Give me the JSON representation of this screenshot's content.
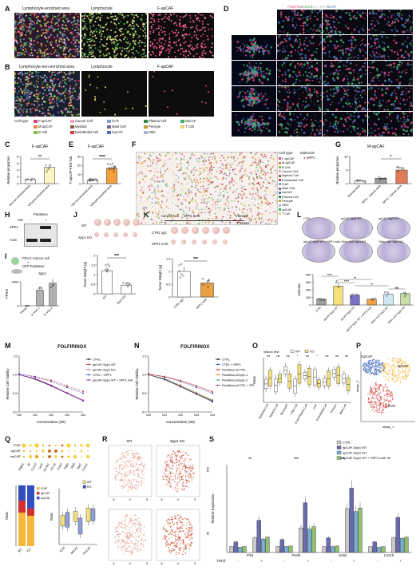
{
  "panels": [
    "A",
    "B",
    "C",
    "D",
    "E",
    "F",
    "G",
    "H",
    "I",
    "J",
    "K",
    "L",
    "M",
    "N",
    "O",
    "P",
    "Q",
    "R",
    "S"
  ],
  "panelA": {
    "titles": [
      "Lymphocyte-enriched area",
      "Lymphocyte",
      "F-apCAF"
    ]
  },
  "panelB": {
    "titles": [
      "Lymphocyte-non-enriched area",
      "Lymphocyte",
      "F-apCAF"
    ],
    "legend_title": "Cell type",
    "legend": [
      {
        "label": "F-apCAF",
        "color": "#e0457b"
      },
      {
        "label": "Cancer Cell",
        "color": "#f2a6c4"
      },
      {
        "label": "iCAF",
        "color": "#7aa0d6"
      },
      {
        "label": "Plasma Cell",
        "color": "#2f8a4a"
      },
      {
        "label": "ssiCAF",
        "color": "#3fb36a"
      },
      {
        "label": "M-apCAF",
        "color": "#e08a3a"
      },
      {
        "label": "Myeloid",
        "color": "#8a5a3a"
      },
      {
        "label": "Mast Cell",
        "color": "#6a6a9a"
      },
      {
        "label": "Pericyte",
        "color": "#c0a030"
      },
      {
        "label": "T Cell",
        "color": "#e8d070"
      },
      {
        "label": "B Cell",
        "color": "#7fbf3f"
      },
      {
        "label": "Endothelial Cell",
        "color": "#d04040"
      },
      {
        "label": "myCAF",
        "color": "#4a70c0"
      },
      {
        "label": "SMC",
        "color": "#b0b0d0"
      }
    ]
  },
  "panelC": {
    "title": "F-apCAF",
    "ylabel": "Relative proportion",
    "categories": [
      "Lymphocyte-non-enriched area",
      "Lymphocyte-enriched area"
    ],
    "sig": "**",
    "chart_data": {
      "type": "bar",
      "categories": [
        "Lymphocyte-non-enriched area",
        "Lymphocyte-enriched area"
      ],
      "values": [
        1.2,
        4.8
      ],
      "ylim": [
        0,
        8
      ],
      "yticks": [
        0,
        2,
        4,
        6,
        8
      ]
    }
  },
  "panelD": {
    "title_a": "PDGFRα",
    "title_b": "CD45",
    "title_c": "HLA-DRA",
    "title_d": "DAPI",
    "side": "CD3",
    "side2": "CD19",
    "side3": "DAPI"
  },
  "panelE": {
    "title": "F-apCAF",
    "ylabel": "F-apCAF-PDX-Nat",
    "categories": [
      "Lymphocyte-non-enriched area",
      "Lymphocyte-enriched area"
    ],
    "sig": "****",
    "chart_data": {
      "type": "bar",
      "categories": [
        "Lymphocyte-non-enriched area",
        "Lymphocyte-enriched area"
      ],
      "values": [
        4,
        17
      ],
      "ylim": [
        0,
        30
      ],
      "yticks": [
        0,
        10,
        20,
        30
      ]
    }
  },
  "panelF": {
    "legend_title": "Cell type",
    "legend": [
      "F-apCAF",
      "M-apCAF",
      "B Cell",
      "Cancer Cell",
      "Myeloid Cell",
      "Endothelial Cell",
      "iCAF",
      "Mast Cell",
      "myCAF",
      "Plasma Cell",
      "Pericyte",
      "SMC",
      "ssiCAF",
      "T Cell"
    ],
    "molecule_title": "Molecule",
    "molecule": "SPP1"
  },
  "panelG": {
    "title": "M-apCAF",
    "ylabel": "Relative proportion",
    "categories": [
      "Stromal area",
      "SPP1⁻ Cancer area",
      "SPP1⁺ Cancer area"
    ],
    "sig": "*",
    "chart_data": {
      "type": "bar",
      "categories": [
        "Stromal area",
        "SPP1⁻ Cancer area",
        "SPP1⁺ Cancer area"
      ],
      "values": [
        1,
        2,
        5
      ],
      "ylim": [
        0,
        10
      ],
      "yticks": [
        0,
        5,
        10
      ]
    }
  },
  "panelH": {
    "header": "PanMeso",
    "cm": "CM",
    "minus": "-",
    "plus": "+",
    "rows": [
      "SPP1",
      "Actin"
    ]
  },
  "panelI": {
    "labels": [
      "PDAC Cancer cell",
      "+",
      "GFP PanMeso"
    ],
    "gene": "Spp1",
    "ylabel": "FPKM",
    "categories": [
      "Parent",
      "In Vivo 1",
      "In Vivo 2"
    ],
    "chart_data": {
      "type": "bar",
      "categories": [
        "Parent",
        "In Vivo 1",
        "In Vivo 2"
      ],
      "values": [
        0,
        1300,
        1900
      ],
      "ylim": [
        0,
        2000
      ]
    }
  },
  "panelJ": {
    "rows": [
      "WT",
      "Spp1 KO"
    ],
    "ylabel": "Tumor Weight (g)",
    "categories": [
      "WT",
      "Spp1 KO"
    ],
    "sig": "***",
    "chart_data": {
      "type": "bar",
      "categories": [
        "WT",
        "Spp1 KO"
      ],
      "values": [
        1.2,
        0.45
      ],
      "ylim": [
        0,
        2.0
      ],
      "yticks": [
        0.0,
        0.5,
        1.0,
        1.5,
        2.0
      ]
    }
  },
  "panelK": {
    "timeline": [
      "Cancer Cell",
      "SPP1 mAb",
      "Harvest",
      "0",
      "7",
      "4 Weeks"
    ],
    "rows": [
      "CTRL IgG",
      "SPP1 mAb"
    ],
    "ylabel": "Tumor Weight (g)",
    "categories": [
      "CTRL IgG",
      "SPP1 mAb"
    ],
    "sig": "***",
    "chart_data": {
      "type": "bar",
      "categories": [
        "CTRL IgG",
        "SPP1 mAb"
      ],
      "values": [
        1.0,
        0.55
      ],
      "ylim": [
        0,
        1.5
      ],
      "yticks": [
        0.0,
        0.5,
        1.0,
        1.5
      ]
    }
  },
  "panelL": {
    "dish_labels": [
      "CTRL",
      "apCAF-Spp1 WT",
      "apCAF-Spp1 KO",
      "apCAF-Spp1 WT + SPP1 mAb",
      "Other CAF-Spp1 WT",
      "Other CAF-Spp1 KO"
    ],
    "ylabel": "Colonies",
    "categories": [
      "CTRL",
      "apCAF-Spp1 WT",
      "apCAF-Spp1 KO",
      "apCAF-Spp1 WT + SPP1 mAb",
      "Other CAF-Spp1 WT",
      "Other CAF-Spp1 KO"
    ],
    "sig": [
      "****",
      "**",
      "****",
      "**",
      "ns"
    ],
    "chart_data": {
      "type": "bar",
      "categories": [
        "CTRL",
        "apCAF-Spp1 WT",
        "apCAF-Spp1 KO",
        "apCAF-Spp1 WT + SPP1 mAb",
        "Other CAF-Spp1 WT",
        "Other CAF-Spp1 KO"
      ],
      "values": [
        80,
        250,
        130,
        75,
        140,
        150
      ],
      "ylim": [
        0,
        400
      ],
      "yticks": [
        0,
        100,
        200,
        300,
        400
      ]
    }
  },
  "panelM": {
    "title": "FOLFIRINOX",
    "xlabel": "Concentration (nM)",
    "ylabel": "Relative Cell Viability",
    "legend": [
      {
        "name": "CTRL",
        "color": "#000000"
      },
      {
        "name": "apCAF-Spp1 WT",
        "color": "#d03030"
      },
      {
        "name": "apCAF-Spp1 KO",
        "color": "#d060c0"
      },
      {
        "name": "CTRL + SPP1",
        "color": "#3050c0"
      },
      {
        "name": "apCAF-Spp1 WT + SPP1 mAb",
        "color": "#8030a0"
      }
    ],
    "chart_data": {
      "type": "line",
      "x": [
        1,
        10,
        100,
        1000,
        10000
      ],
      "xscale": "log",
      "ylim": [
        0,
        1.5
      ],
      "yticks": [
        0.0,
        0.5,
        1.0,
        1.5
      ],
      "series": [
        {
          "name": "CTRL",
          "values": [
            1.0,
            0.88,
            0.7,
            0.5,
            0.3
          ]
        },
        {
          "name": "apCAF-Spp1 WT",
          "values": [
            1.02,
            0.95,
            0.85,
            0.7,
            0.55
          ]
        },
        {
          "name": "apCAF-Spp1 KO",
          "values": [
            1.0,
            0.9,
            0.72,
            0.52,
            0.32
          ]
        },
        {
          "name": "CTRL + SPP1",
          "values": [
            1.02,
            0.94,
            0.82,
            0.66,
            0.5
          ]
        },
        {
          "name": "apCAF-Spp1 WT + SPP1 mAb",
          "values": [
            1.0,
            0.89,
            0.71,
            0.5,
            0.3
          ]
        }
      ]
    }
  },
  "panelN": {
    "title": "FOLFIRINOX",
    "xlabel": "Concentration (nM)",
    "ylabel": "Relative Cell Viability",
    "legend": [
      {
        "name": "CTRL",
        "color": "#000000"
      },
      {
        "name": "CTRL + SPP1",
        "color": "#3050c0"
      },
      {
        "name": "PanMeso-siCTRL",
        "color": "#d03030"
      },
      {
        "name": "PanMeso-siSpp1-1",
        "color": "#e08a3a"
      },
      {
        "name": "PanMeso-siSpp1-2",
        "color": "#3fa060"
      },
      {
        "name": "PanMeso-siCTRL + SPP1 mAb",
        "color": "#8030a0"
      }
    ],
    "chart_data": {
      "type": "line",
      "x": [
        1,
        10,
        100,
        1000,
        10000
      ],
      "xscale": "log",
      "ylim": [
        0,
        1.5
      ],
      "yticks": [
        0.0,
        0.5,
        1.0,
        1.5
      ],
      "series": [
        {
          "name": "CTRL",
          "values": [
            1.0,
            0.87,
            0.68,
            0.48,
            0.28
          ]
        },
        {
          "name": "CTRL + SPP1",
          "values": [
            1.02,
            0.94,
            0.82,
            0.66,
            0.5
          ]
        },
        {
          "name": "PanMeso-siCTRL",
          "values": [
            1.02,
            0.95,
            0.84,
            0.7,
            0.54
          ]
        },
        {
          "name": "PanMeso-siSpp1-1",
          "values": [
            1.0,
            0.9,
            0.72,
            0.52,
            0.33
          ]
        },
        {
          "name": "PanMeso-siSpp1-2",
          "values": [
            1.0,
            0.89,
            0.7,
            0.5,
            0.31
          ]
        },
        {
          "name": "PanMeso-siCTRL + SPP1 mAb",
          "values": [
            1.0,
            0.88,
            0.69,
            0.49,
            0.3
          ]
        }
      ]
    }
  },
  "panelO": {
    "test": "Wilcox test",
    "legend": [
      "WT",
      "KO"
    ],
    "ylabel": "Ratio",
    "categories": [
      "Epithelial Cell",
      "Myeloid Cell",
      "Neutrophil",
      "T/NK Cell",
      "B and Plasma Cell",
      "CAF",
      "Endothelial Cell",
      "Pericyte",
      "Mast Cell"
    ],
    "sig": [
      "ns",
      "ns",
      "ns",
      "*",
      "ns",
      "*",
      "ns",
      "ns",
      "ns"
    ]
  },
  "panelP": {
    "labels": [
      "myCAF",
      "apCAF",
      "iCAF"
    ],
    "xlabel": "umap_1",
    "ylabel": "umap_2"
  },
  "panelQ": {
    "rows": [
      "iCAF",
      "apCAF",
      "myCAF"
    ],
    "genes": [
      "Pdgfra",
      "Il6",
      "Cxcl12",
      "Cd74",
      "H2-Ab1",
      "H2-Aa",
      "Acta2",
      "Tagln",
      "Myl9",
      "Spp1",
      "Col1a1"
    ],
    "bar_categories": [
      "WT",
      "KO"
    ],
    "bar_legend": [
      "iCAF",
      "apCAF",
      "myCAF"
    ],
    "bar_ylabel": "Ratio",
    "box_categories": [
      "iCAF",
      "apCAF",
      "myCAF"
    ],
    "box_legend": [
      "WT",
      "KO"
    ],
    "box_ylabel": "Ratio"
  },
  "panelR": {
    "titles": [
      "WT",
      "Spp1 KO"
    ],
    "genes": [
      "Il16",
      "Il6"
    ]
  },
  "panelS": {
    "legend": [
      {
        "name": "CTRL",
        "color": "#c8c8c8"
      },
      {
        "name": "apCAF-Spp1 WT",
        "color": "#6a6ab0"
      },
      {
        "name": "apCAF-Spp1 KO",
        "color": "#7ab0d0"
      },
      {
        "name": "apCAF-Spp1 WT + SPP1 mAb",
        "color": "#90c070"
      }
    ],
    "ylabel": "Relative Expression",
    "genes": [
      "Fl16",
      "Postn",
      "Acta2",
      "Lrrc15"
    ],
    "tgf_label": "TGFβ",
    "tgf_values": [
      "-",
      "+",
      "-",
      "+",
      "-",
      "+",
      "-",
      "+"
    ],
    "chart_data": {
      "type": "bar",
      "categories": [
        "Fl16 -",
        "Fl16 +",
        "Postn -",
        "Postn +",
        "Acta2 -",
        "Acta2 +",
        "Lrrc15 -",
        "Lrrc15 +"
      ],
      "series": [
        {
          "name": "CTRL",
          "values": [
            1,
            2.5,
            1,
            4.2,
            1,
            7.5,
            1,
            2.5
          ]
        },
        {
          "name": "apCAF-Spp1 WT",
          "values": [
            1.8,
            5.5,
            2.2,
            8.5,
            2.5,
            11,
            1.8,
            6
          ]
        },
        {
          "name": "apCAF-Spp1 KO",
          "values": [
            0.9,
            2.3,
            1,
            4,
            1,
            7,
            0.9,
            2.4
          ]
        },
        {
          "name": "apCAF-Spp1 WT + SPP1 mAb",
          "values": [
            1,
            2.6,
            1.1,
            4.4,
            1.1,
            7.6,
            1,
            2.6
          ]
        }
      ],
      "ylim": [
        0,
        15
      ]
    }
  }
}
